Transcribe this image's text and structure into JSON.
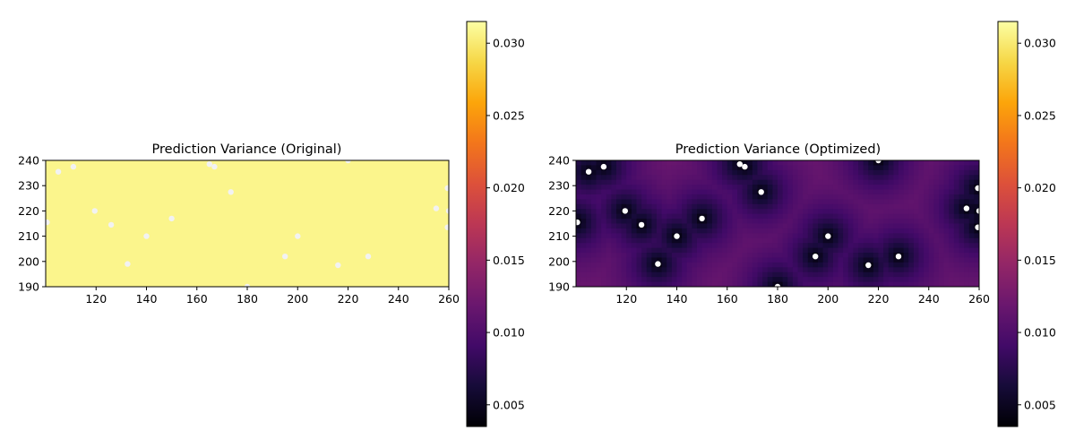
{
  "chart_data": [
    {
      "type": "heatmap",
      "title": "Prediction Variance (Original)",
      "xlabel": "",
      "ylabel": "",
      "xlim": [
        100,
        260
      ],
      "ylim": [
        190,
        240
      ],
      "x_ticks": [
        "120",
        "140",
        "160",
        "180",
        "200",
        "220",
        "240",
        "260"
      ],
      "y_ticks": [
        "190",
        "200",
        "210",
        "220",
        "230",
        "240"
      ],
      "colormap": "inferno",
      "color_range": [
        0.0035,
        0.0315
      ],
      "colorbar_ticks": [
        "0.005",
        "0.010",
        "0.015",
        "0.020",
        "0.025",
        "0.030"
      ],
      "field_value": 0.0308,
      "grid": false,
      "points_color": "#f2f2f2",
      "points": [
        {
          "x": 100.5,
          "y": 215.5
        },
        {
          "x": 105,
          "y": 235.5
        },
        {
          "x": 111,
          "y": 237.5
        },
        {
          "x": 119.5,
          "y": 220
        },
        {
          "x": 126,
          "y": 214.5
        },
        {
          "x": 132.5,
          "y": 199
        },
        {
          "x": 140,
          "y": 210
        },
        {
          "x": 150,
          "y": 217
        },
        {
          "x": 165,
          "y": 238.5
        },
        {
          "x": 167,
          "y": 237.5
        },
        {
          "x": 173.5,
          "y": 227.5
        },
        {
          "x": 180,
          "y": 190
        },
        {
          "x": 195,
          "y": 202
        },
        {
          "x": 200,
          "y": 210
        },
        {
          "x": 216,
          "y": 198.5
        },
        {
          "x": 220,
          "y": 240
        },
        {
          "x": 228,
          "y": 202
        },
        {
          "x": 255,
          "y": 221
        },
        {
          "x": 259.5,
          "y": 229
        },
        {
          "x": 260,
          "y": 220
        },
        {
          "x": 259.5,
          "y": 213.5
        }
      ]
    },
    {
      "type": "heatmap",
      "title": "Prediction Variance (Optimized)",
      "xlabel": "",
      "ylabel": "",
      "xlim": [
        100,
        260
      ],
      "ylim": [
        190,
        240
      ],
      "x_ticks": [
        "120",
        "140",
        "160",
        "180",
        "200",
        "220",
        "240",
        "260"
      ],
      "y_ticks": [
        "190",
        "200",
        "210",
        "220",
        "230",
        "240"
      ],
      "colormap": "inferno",
      "color_range": [
        0.0035,
        0.0315
      ],
      "colorbar_ticks": [
        "0.005",
        "0.010",
        "0.015",
        "0.020",
        "0.025",
        "0.030"
      ],
      "field_range": [
        0.0035,
        0.0125
      ],
      "grid": false,
      "points_color": "#ffffff",
      "points": [
        {
          "x": 100.5,
          "y": 215.5
        },
        {
          "x": 105,
          "y": 235.5
        },
        {
          "x": 111,
          "y": 237.5
        },
        {
          "x": 119.5,
          "y": 220
        },
        {
          "x": 126,
          "y": 214.5
        },
        {
          "x": 132.5,
          "y": 199
        },
        {
          "x": 140,
          "y": 210
        },
        {
          "x": 150,
          "y": 217
        },
        {
          "x": 165,
          "y": 238.5
        },
        {
          "x": 167,
          "y": 237.5
        },
        {
          "x": 173.5,
          "y": 227.5
        },
        {
          "x": 180,
          "y": 190
        },
        {
          "x": 195,
          "y": 202
        },
        {
          "x": 200,
          "y": 210
        },
        {
          "x": 216,
          "y": 198.5
        },
        {
          "x": 220,
          "y": 240
        },
        {
          "x": 228,
          "y": 202
        },
        {
          "x": 255,
          "y": 221
        },
        {
          "x": 259.5,
          "y": 229
        },
        {
          "x": 260,
          "y": 220
        },
        {
          "x": 259.5,
          "y": 213.5
        }
      ]
    }
  ]
}
